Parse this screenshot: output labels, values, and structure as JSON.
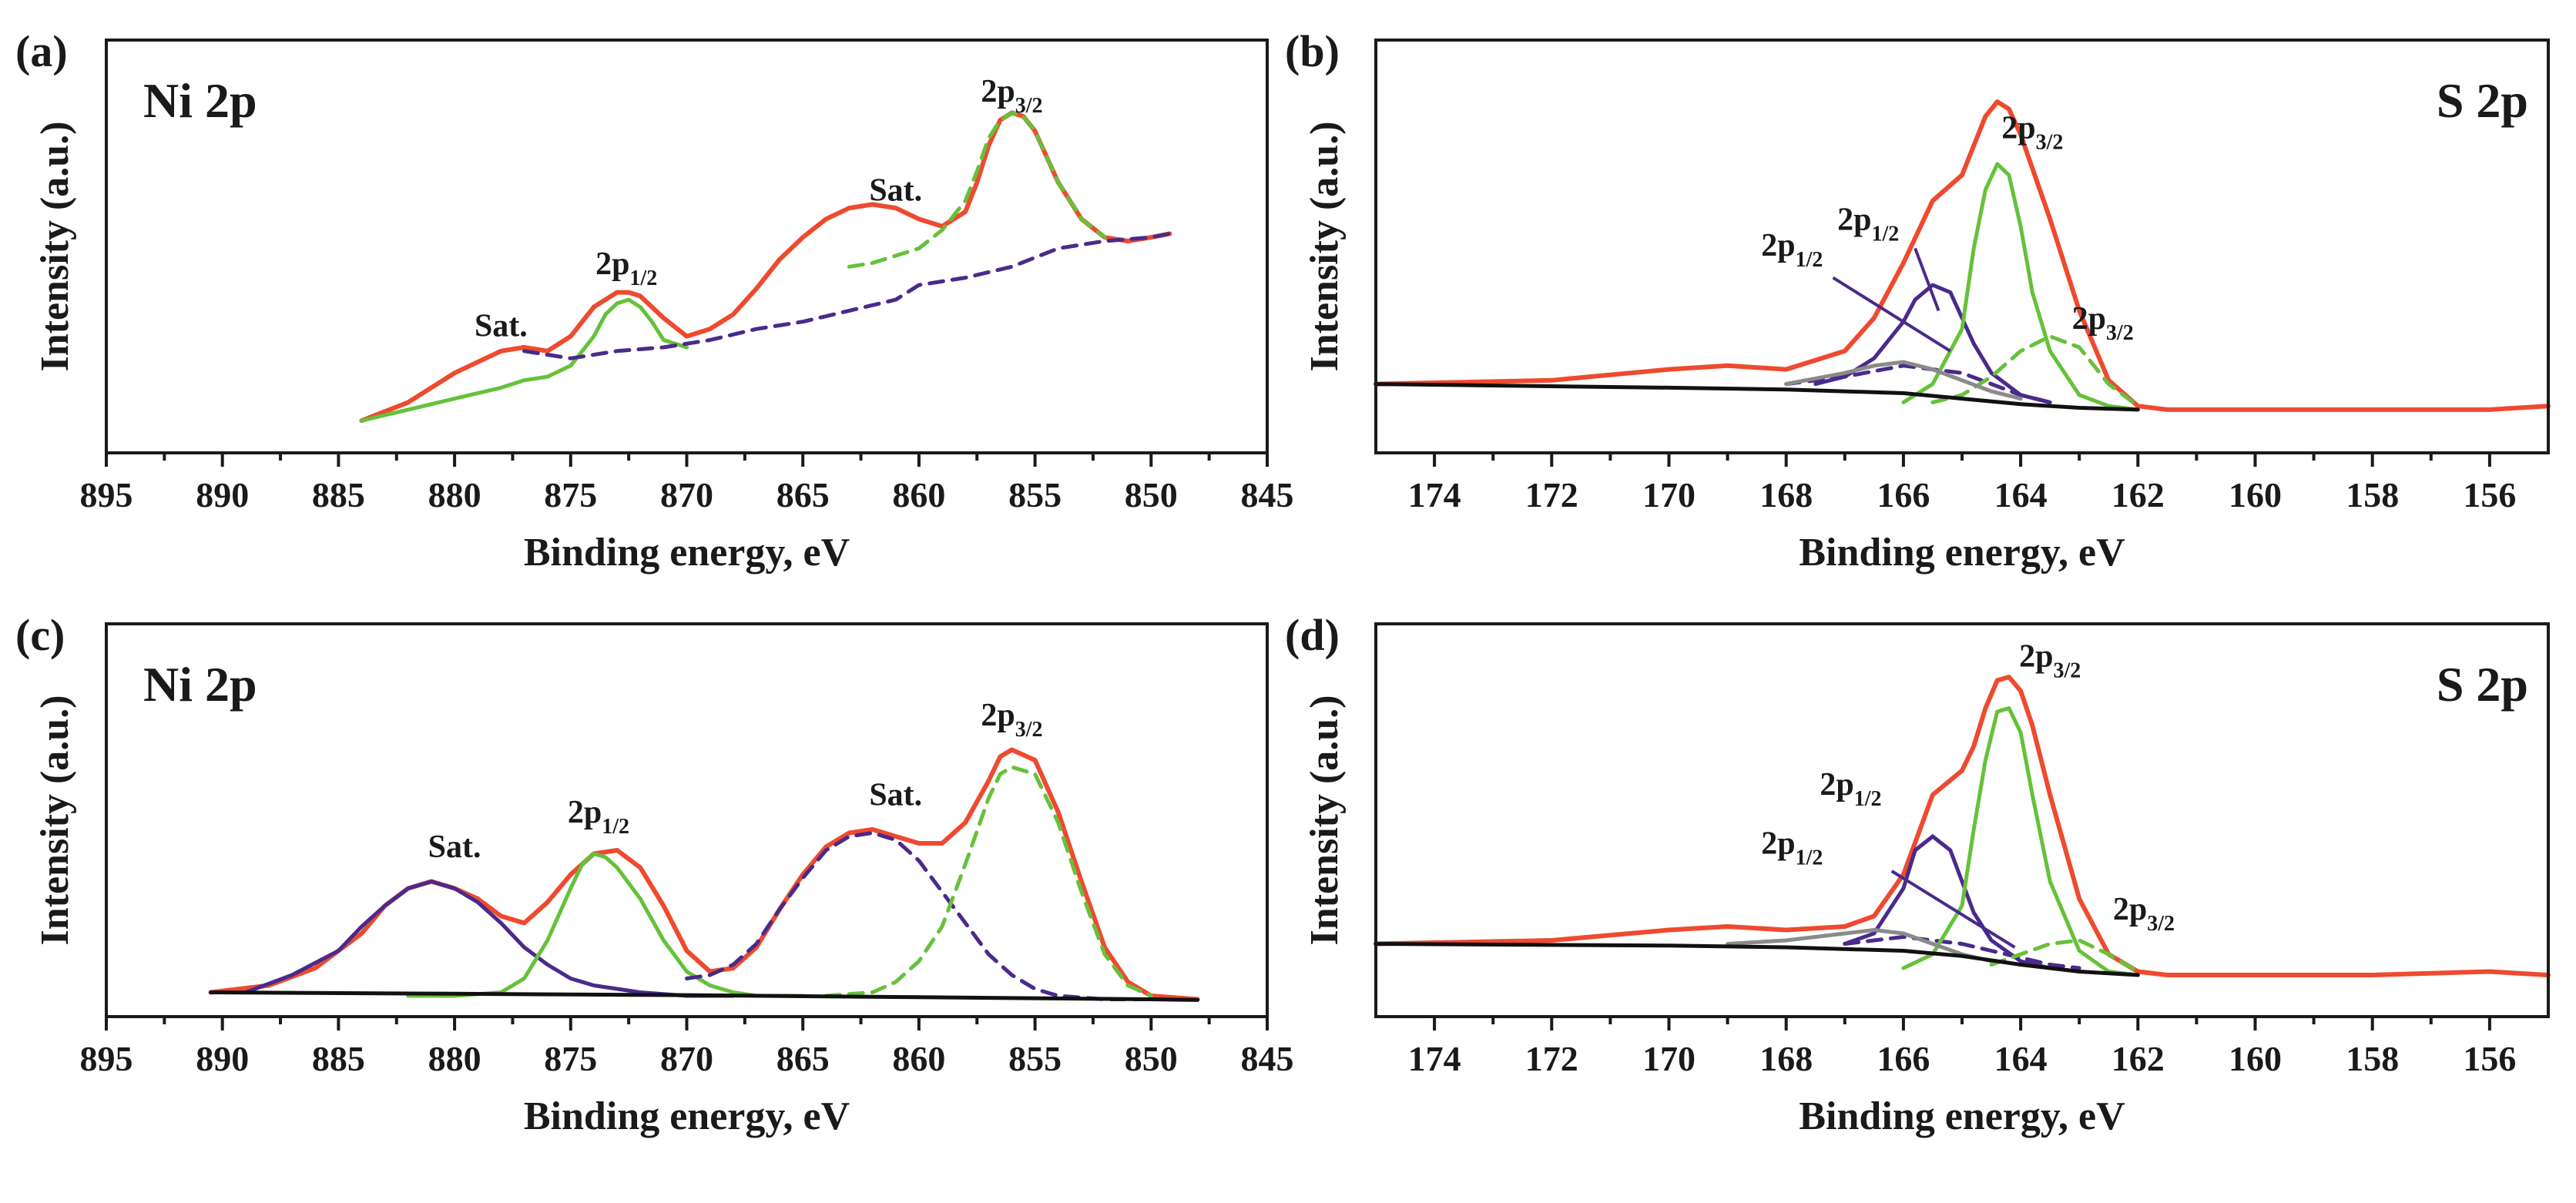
{
  "colors": {
    "envelope": "#ee4a2f",
    "green": "#66c13a",
    "purple": "#4a2a8c",
    "grey": "#8a8a8a",
    "black": "#111111",
    "axis": "#1a1a1a"
  },
  "chart_data": [
    {
      "type": "line",
      "panel_label": "(a)",
      "title": "Ni 2p",
      "xlabel": "Binding energy, eV",
      "ylabel": "Intensity (a.u.)",
      "xlim": [
        895,
        845
      ],
      "ylim": [
        0,
        100
      ],
      "xticks": [
        "895",
        "890",
        "885",
        "880",
        "875",
        "870",
        "865",
        "860",
        "855",
        "850",
        "845"
      ],
      "series": [
        {
          "name": "envelope",
          "color": "#ee4a2f",
          "dash": "solid",
          "x": [
            884,
            882,
            880,
            878,
            877,
            876,
            875,
            874,
            873,
            872.5,
            872,
            871,
            870,
            869,
            868,
            867,
            866,
            865,
            864,
            863,
            862,
            861,
            860,
            859,
            858,
            857.5,
            857,
            856.5,
            856,
            855.5,
            855,
            854,
            853,
            852,
            851,
            850,
            849.2
          ],
          "y": [
            5,
            10,
            18,
            24,
            25,
            24,
            28,
            36,
            40,
            40,
            39,
            33,
            28,
            30,
            34,
            41,
            49,
            55,
            60,
            63,
            64,
            63,
            60,
            58,
            62,
            70,
            80,
            87,
            89,
            88,
            84,
            70,
            60,
            55,
            54,
            55,
            56
          ]
        },
        {
          "name": "2p1/2 fit",
          "color": "#66c13a",
          "dash": "solid",
          "x": [
            884,
            882,
            880,
            878,
            877,
            876,
            875,
            874,
            873.5,
            873,
            872.5,
            872,
            871.5,
            871,
            870
          ],
          "y": [
            5,
            8,
            11,
            14,
            16,
            17,
            20,
            28,
            34,
            37,
            38,
            36,
            32,
            27,
            25
          ]
        },
        {
          "name": "2p3/2 fit",
          "color": "#66c13a",
          "dash": "dashed",
          "x": [
            863,
            862,
            861,
            860,
            859,
            858,
            857.5,
            857,
            856.5,
            856,
            855.5,
            855,
            854,
            853,
            852
          ],
          "y": [
            47,
            48,
            50,
            52,
            57,
            65,
            73,
            82,
            87,
            89,
            88,
            84,
            70,
            60,
            55
          ]
        },
        {
          "name": "background/satellite",
          "color": "#4a2a8c",
          "dash": "dashed",
          "x": [
            877,
            875,
            873,
            871,
            869,
            867,
            865,
            863,
            861,
            860,
            858,
            856,
            854,
            852,
            850,
            849.2
          ],
          "y": [
            24,
            22,
            24,
            25,
            27,
            30,
            32,
            35,
            38,
            42,
            44,
            47,
            52,
            54,
            55,
            56
          ]
        }
      ],
      "annotations": [
        {
          "text": "Sat.",
          "x": 878,
          "y": 28
        },
        {
          "text": "2p1/2",
          "x": 872.6,
          "y": 45
        },
        {
          "text": "Sat.",
          "x": 861,
          "y": 65
        },
        {
          "text": "2p3/2",
          "x": 856,
          "y": 92
        }
      ]
    },
    {
      "type": "line",
      "panel_label": "(b)",
      "title": "S 2p",
      "xlabel": "Binding energy, eV",
      "ylabel": "Intensity (a.u.)",
      "xlim": [
        175,
        155
      ],
      "ylim": [
        0,
        100
      ],
      "xticks": [
        "174",
        "172",
        "170",
        "168",
        "166",
        "164",
        "162",
        "160",
        "158",
        "156"
      ],
      "series": [
        {
          "name": "envelope",
          "color": "#ee4a2f",
          "dash": "solid",
          "x": [
            175,
            172,
            170,
            169,
            168,
            167,
            166.5,
            166,
            165.5,
            165,
            164.8,
            164.6,
            164.4,
            164.2,
            164,
            163.5,
            163,
            162.5,
            162,
            161.5,
            160,
            158,
            156,
            155
          ],
          "y": [
            15,
            16,
            19,
            20,
            19,
            24,
            33,
            48,
            65,
            72,
            80,
            88,
            92,
            90,
            83,
            60,
            35,
            16,
            9,
            8,
            8,
            8,
            8,
            9
          ]
        },
        {
          "name": "2p1/2 fit A",
          "color": "#4a2a8c",
          "dash": "solid",
          "x": [
            167.5,
            167,
            166.5,
            166,
            165.8,
            165.5,
            165.2,
            165,
            164.8,
            164.5,
            164,
            163.5
          ],
          "y": [
            15,
            17,
            22,
            32,
            38,
            42,
            40,
            33,
            26,
            18,
            12,
            10
          ]
        },
        {
          "name": "2p1/2 fit B",
          "color": "#4a2a8c",
          "dash": "dashed",
          "x": [
            168,
            167,
            166,
            165,
            164.5,
            164,
            163.5
          ],
          "y": [
            15,
            17,
            20,
            18,
            15,
            12,
            10
          ]
        },
        {
          "name": "2p3/2 fit A",
          "color": "#66c13a",
          "dash": "solid",
          "x": [
            166,
            165.5,
            165,
            164.8,
            164.6,
            164.4,
            164.2,
            164,
            163.8,
            163.5,
            163,
            162.5,
            162
          ],
          "y": [
            10,
            15,
            30,
            52,
            68,
            75,
            72,
            58,
            40,
            24,
            12,
            9,
            8
          ]
        },
        {
          "name": "2p3/2 fit B",
          "color": "#66c13a",
          "dash": "dashed",
          "x": [
            165.5,
            165,
            164.5,
            164,
            163.5,
            163,
            162.5,
            162
          ],
          "y": [
            10,
            12,
            17,
            24,
            28,
            25,
            15,
            9
          ]
        },
        {
          "name": "satellite",
          "color": "#8a8a8a",
          "dash": "solid",
          "x": [
            168,
            167,
            166.5,
            166,
            165.5,
            165,
            164.5,
            164
          ],
          "y": [
            15,
            18,
            20,
            21,
            19,
            16,
            13,
            11
          ]
        },
        {
          "name": "background",
          "color": "#111111",
          "dash": "solid",
          "x": [
            175,
            170,
            168,
            166,
            165,
            164,
            163,
            162
          ],
          "y": [
            15,
            14,
            13.5,
            12.5,
            11,
            9.5,
            8.5,
            8
          ]
        }
      ],
      "annotations": [
        {
          "text": "2p1/2",
          "x": 167.9,
          "y": 50
        },
        {
          "text": "2p1/2",
          "x": 166.6,
          "y": 57
        },
        {
          "text": "2p3/2",
          "x": 163.8,
          "y": 82
        },
        {
          "text": "2p3/2",
          "x": 162.6,
          "y": 30
        }
      ]
    },
    {
      "type": "line",
      "panel_label": "(c)",
      "title": "Ni 2p",
      "xlabel": "Binding energy, eV",
      "ylabel": "Intensity (a.u.)",
      "xlim": [
        895,
        845
      ],
      "ylim": [
        0,
        100
      ],
      "xticks": [
        "895",
        "890",
        "885",
        "880",
        "875",
        "870",
        "865",
        "860",
        "855",
        "850",
        "845"
      ],
      "series": [
        {
          "name": "envelope",
          "color": "#ee4a2f",
          "dash": "solid",
          "x": [
            890.5,
            888,
            886,
            884,
            883,
            882,
            881,
            880,
            879,
            878,
            877,
            876,
            875,
            874,
            873,
            872,
            871,
            870,
            869,
            868,
            867,
            866,
            865,
            864,
            863,
            862,
            861,
            860,
            859,
            858,
            857,
            856.5,
            856,
            855,
            854,
            853,
            852,
            851,
            850,
            848
          ],
          "y": [
            3,
            5,
            10,
            20,
            28,
            33,
            35,
            33,
            30,
            25,
            23,
            29,
            37,
            43,
            44,
            39,
            28,
            15,
            9,
            10,
            16,
            27,
            37,
            45,
            49,
            50,
            48,
            46,
            46,
            52,
            64,
            71,
            73,
            70,
            55,
            35,
            16,
            6,
            2,
            1
          ]
        },
        {
          "name": "satellite 1",
          "color": "#4a2a8c",
          "dash": "solid",
          "x": [
            889,
            887,
            885,
            884,
            883,
            882,
            881,
            880,
            879,
            878,
            877,
            876,
            875,
            874,
            872,
            870,
            868
          ],
          "y": [
            3,
            8,
            15,
            22,
            28,
            33,
            35,
            33,
            29,
            23,
            16,
            11,
            7,
            5,
            3,
            2,
            2
          ]
        },
        {
          "name": "2p1/2 fit",
          "color": "#66c13a",
          "dash": "solid",
          "x": [
            882,
            880,
            878,
            877,
            876,
            875,
            874.5,
            874,
            873.5,
            873,
            872,
            871,
            870,
            869,
            868,
            867,
            865
          ],
          "y": [
            2,
            2,
            3,
            7,
            18,
            33,
            40,
            43,
            42,
            39,
            30,
            18,
            9,
            5,
            3,
            2,
            2
          ]
        },
        {
          "name": "satellite 2",
          "color": "#4a2a8c",
          "dash": "dashed",
          "x": [
            870,
            869,
            868,
            867,
            866,
            865,
            864,
            863,
            862,
            861,
            860,
            859,
            858,
            857,
            856,
            855,
            854,
            852,
            850
          ],
          "y": [
            7,
            8,
            11,
            17,
            27,
            36,
            44,
            48,
            49,
            47,
            41,
            32,
            23,
            14,
            8,
            4,
            2,
            1,
            1
          ]
        },
        {
          "name": "2p3/2 fit",
          "color": "#66c13a",
          "dash": "dashed",
          "x": [
            864,
            862,
            861,
            860,
            859,
            858,
            857,
            856.5,
            856,
            855,
            854,
            853,
            852,
            851,
            850
          ],
          "y": [
            2,
            3,
            6,
            12,
            22,
            40,
            59,
            66,
            68,
            66,
            52,
            32,
            14,
            5,
            2
          ]
        },
        {
          "name": "background",
          "color": "#111111",
          "dash": "solid",
          "x": [
            890.5,
            880,
            870,
            860,
            850,
            848
          ],
          "y": [
            3,
            2.6,
            2.2,
            1.6,
            1,
            0.8
          ]
        }
      ],
      "annotations": [
        {
          "text": "Sat.",
          "x": 880,
          "y": 42
        },
        {
          "text": "2p1/2",
          "x": 873.8,
          "y": 52
        },
        {
          "text": "Sat.",
          "x": 861,
          "y": 57
        },
        {
          "text": "2p3/2",
          "x": 856,
          "y": 80
        }
      ]
    },
    {
      "type": "line",
      "panel_label": "(d)",
      "title": "S 2p",
      "xlabel": "Binding energy, eV",
      "ylabel": "Intensity (a.u.)",
      "xlim": [
        175,
        155
      ],
      "ylim": [
        0,
        100
      ],
      "xticks": [
        "174",
        "172",
        "170",
        "168",
        "166",
        "164",
        "162",
        "160",
        "158",
        "156"
      ],
      "series": [
        {
          "name": "envelope",
          "color": "#ee4a2f",
          "dash": "solid",
          "x": [
            175,
            172,
            170,
            169,
            168,
            167,
            166.5,
            166,
            165.5,
            165,
            164.8,
            164.6,
            164.4,
            164.2,
            164,
            163.8,
            163.5,
            163,
            162.5,
            162,
            161.5,
            160,
            158,
            156,
            155
          ],
          "y": [
            17,
            18,
            21,
            22,
            21,
            22,
            25,
            37,
            60,
            67,
            74,
            85,
            93,
            94,
            90,
            80,
            60,
            30,
            14,
            9,
            8,
            8,
            8,
            9,
            8
          ]
        },
        {
          "name": "2p1/2 fit A",
          "color": "#4a2a8c",
          "dash": "solid",
          "x": [
            167,
            166.5,
            166,
            165.8,
            165.5,
            165.2,
            165,
            164.8,
            164.5,
            164,
            163.5
          ],
          "y": [
            17,
            20,
            33,
            44,
            48,
            44,
            35,
            26,
            18,
            12,
            10
          ]
        },
        {
          "name": "2p1/2 fit B",
          "color": "#4a2a8c",
          "dash": "dashed",
          "x": [
            167,
            166,
            165,
            164.5,
            164,
            163.5,
            163
          ],
          "y": [
            17,
            19,
            17,
            15,
            13,
            11,
            10
          ]
        },
        {
          "name": "2p3/2 fit A",
          "color": "#66c13a",
          "dash": "solid",
          "x": [
            166,
            165.5,
            165,
            164.8,
            164.6,
            164.4,
            164.2,
            164,
            163.8,
            163.5,
            163,
            162.5,
            162
          ],
          "y": [
            10,
            14,
            28,
            50,
            70,
            84,
            85,
            78,
            60,
            35,
            15,
            9,
            8
          ]
        },
        {
          "name": "2p3/2 fit B",
          "color": "#66c13a",
          "dash": "dashed",
          "x": [
            164.5,
            164,
            163.5,
            163,
            162.5,
            162
          ],
          "y": [
            11,
            14,
            17,
            18,
            14,
            9
          ]
        },
        {
          "name": "satellite",
          "color": "#8a8a8a",
          "dash": "solid",
          "x": [
            169,
            168,
            167,
            166.5,
            166,
            165.5,
            165,
            164.5
          ],
          "y": [
            17,
            18,
            20,
            21,
            20,
            17,
            14,
            12
          ]
        },
        {
          "name": "background",
          "color": "#111111",
          "dash": "solid",
          "x": [
            175,
            170,
            168,
            166,
            165,
            164,
            163,
            162
          ],
          "y": [
            17,
            16.5,
            16,
            15,
            13.5,
            11,
            9,
            8
          ]
        }
      ],
      "annotations": [
        {
          "text": "2p1/2",
          "x": 166.9,
          "y": 60
        },
        {
          "text": "2p1/2",
          "x": 167.9,
          "y": 43
        },
        {
          "text": "2p3/2",
          "x": 163.5,
          "y": 97
        },
        {
          "text": "2p3/2",
          "x": 161.9,
          "y": 24
        }
      ]
    }
  ]
}
